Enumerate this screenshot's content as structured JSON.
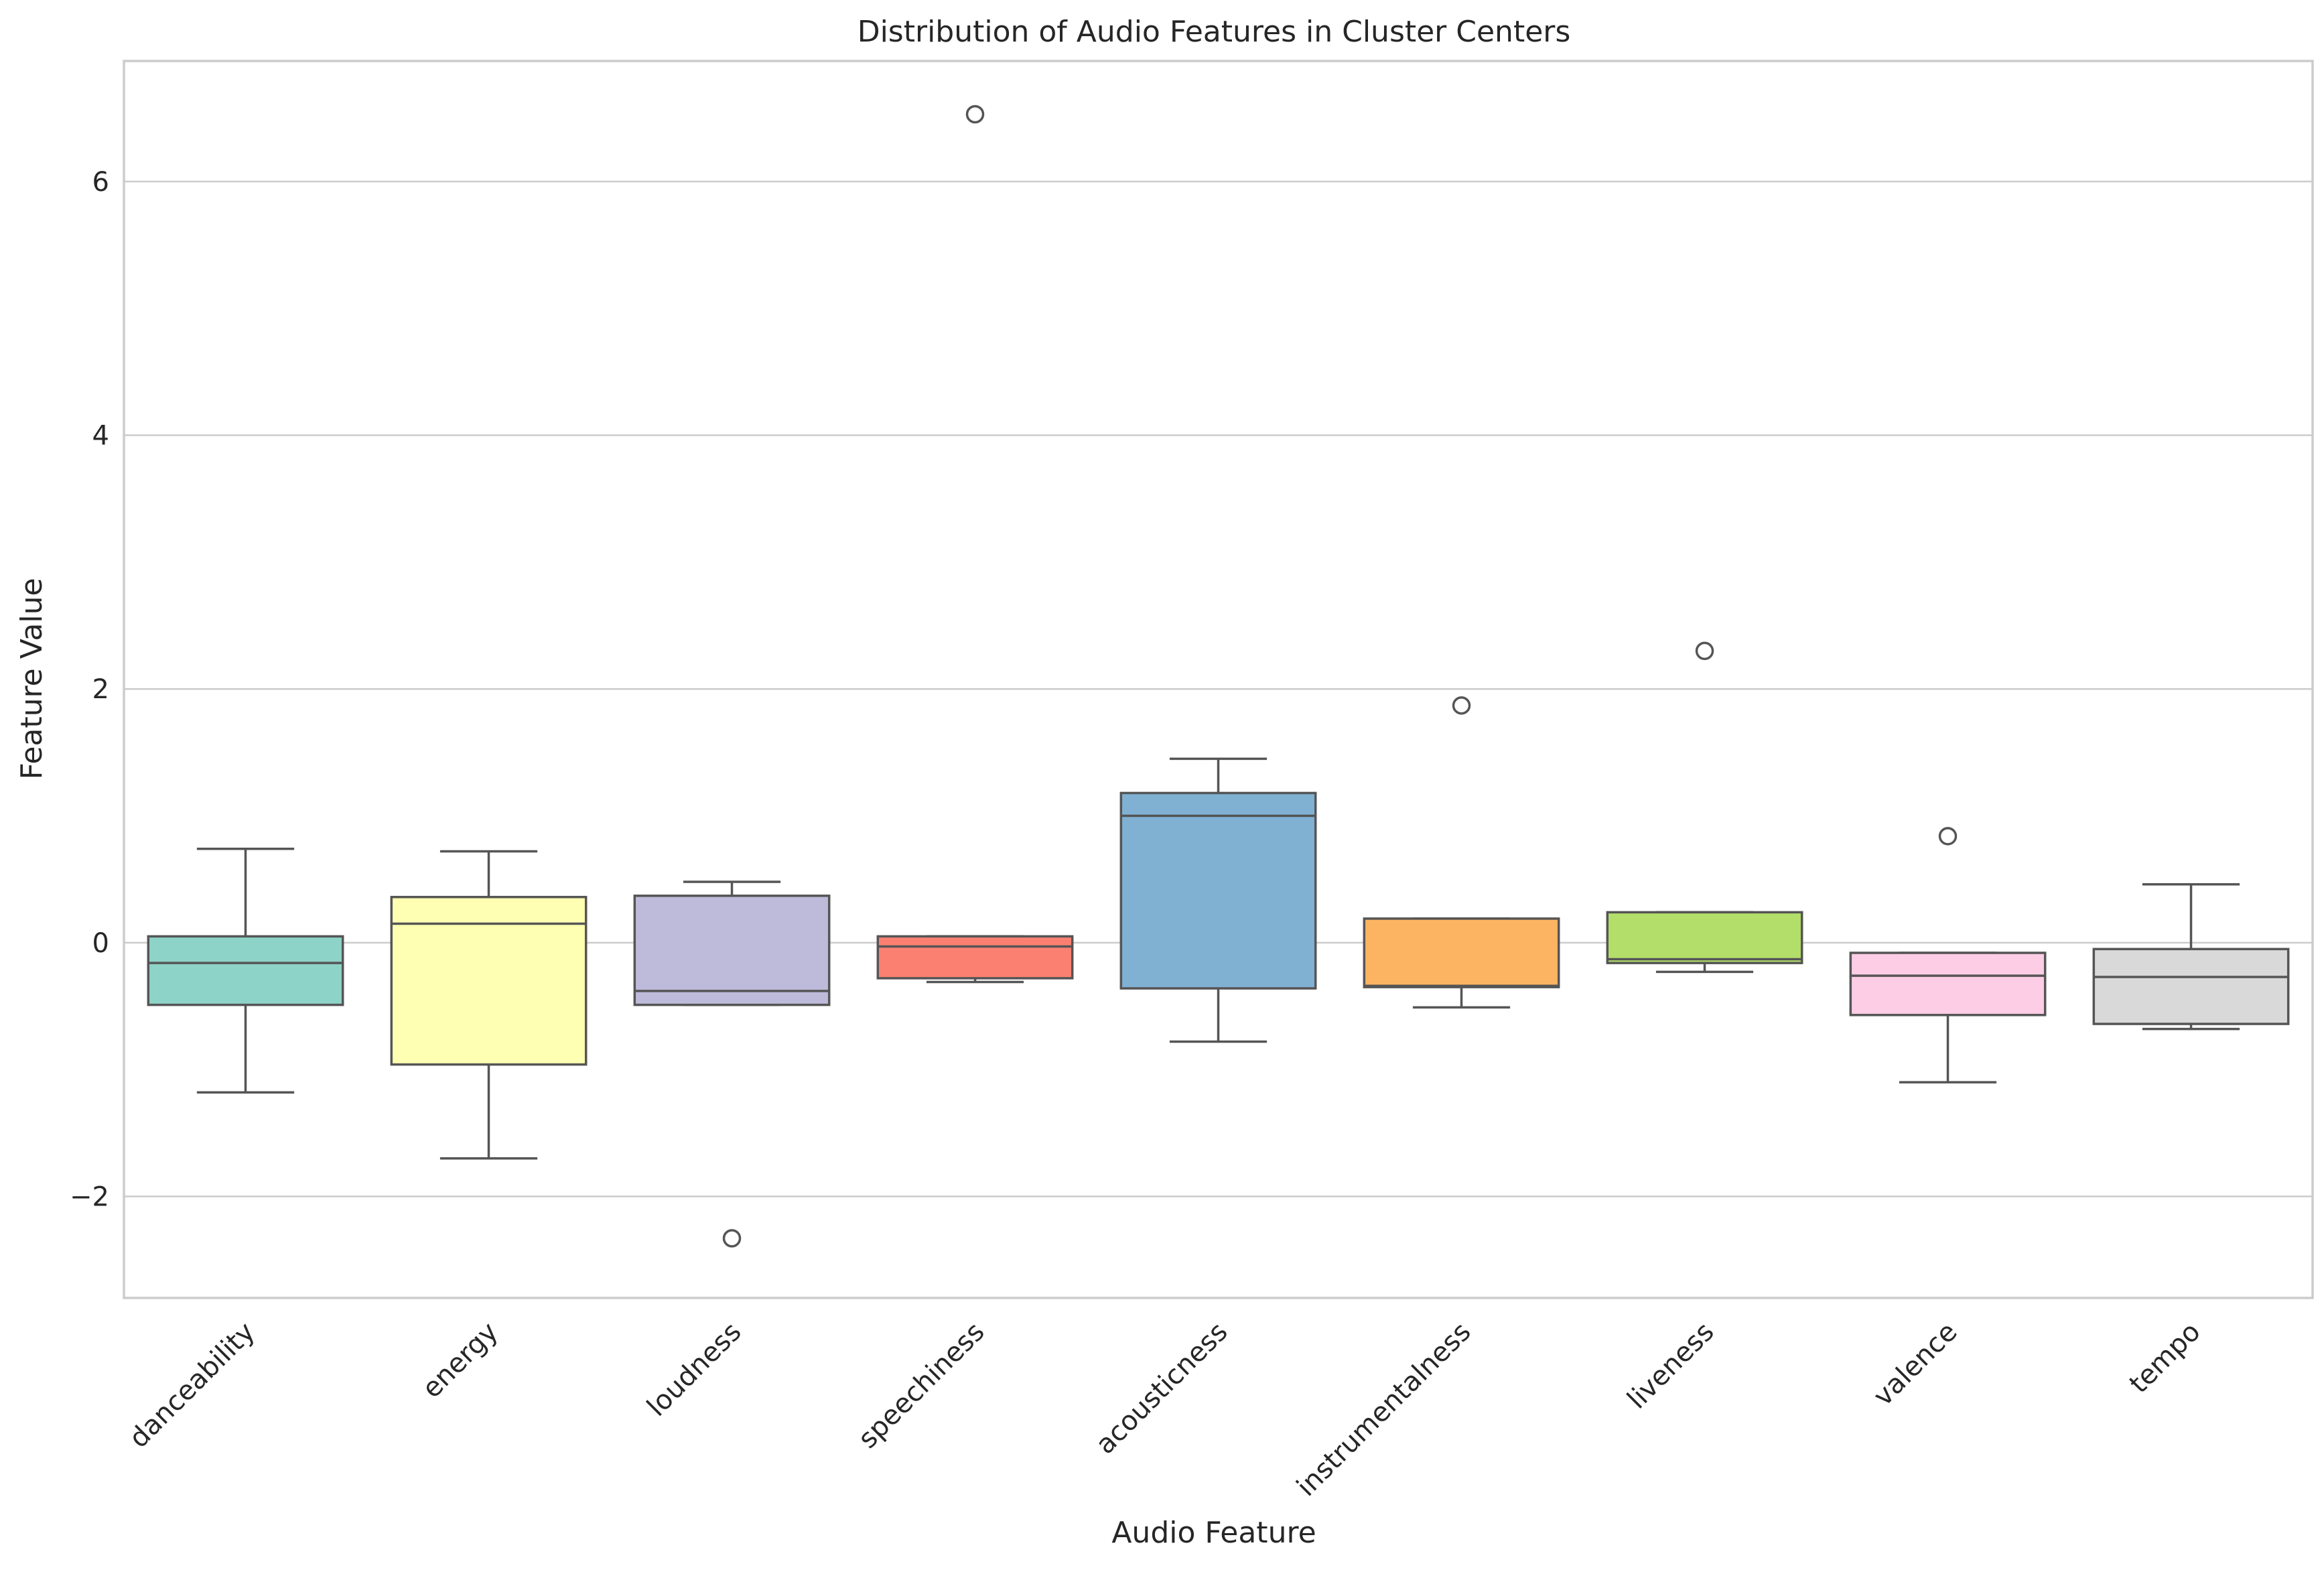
{
  "chart_data": {
    "type": "box",
    "title": "Distribution of Audio Features in Cluster Centers",
    "xlabel": "Audio Feature",
    "ylabel": "Feature Value",
    "ylim": [
      -2.8,
      6.95
    ],
    "yticks": [
      -2,
      0,
      2,
      4,
      6
    ],
    "ytick_labels": [
      "−2",
      "0",
      "2",
      "4",
      "6"
    ],
    "grid": "horizontal",
    "categories": [
      "danceability",
      "energy",
      "loudness",
      "speechiness",
      "acousticness",
      "instrumentalness",
      "liveness",
      "valence",
      "tempo"
    ],
    "boxes": [
      {
        "feature": "danceability",
        "whisker_low": -1.18,
        "q1": -0.49,
        "median": -0.16,
        "q3": 0.05,
        "whisker_high": 0.74,
        "outliers": [],
        "color": "#8dd3c7"
      },
      {
        "feature": "energy",
        "whisker_low": -1.7,
        "q1": -0.96,
        "median": 0.15,
        "q3": 0.36,
        "whisker_high": 0.72,
        "outliers": [],
        "color": "#ffffb3"
      },
      {
        "feature": "loudness",
        "whisker_low": -0.49,
        "q1": -0.49,
        "median": -0.38,
        "q3": 0.37,
        "whisker_high": 0.48,
        "outliers": [
          -2.33
        ],
        "color": "#bebada"
      },
      {
        "feature": "speechiness",
        "whisker_low": -0.31,
        "q1": -0.28,
        "median": -0.03,
        "q3": 0.05,
        "whisker_high": 0.05,
        "outliers": [
          6.53
        ],
        "color": "#fb8072"
      },
      {
        "feature": "acousticness",
        "whisker_low": -0.78,
        "q1": -0.36,
        "median": 1.0,
        "q3": 1.18,
        "whisker_high": 1.45,
        "outliers": [],
        "color": "#80b1d3"
      },
      {
        "feature": "instrumentalness",
        "whisker_low": -0.51,
        "q1": -0.35,
        "median": -0.34,
        "q3": 0.19,
        "whisker_high": 0.19,
        "outliers": [
          1.87
        ],
        "color": "#fdb462"
      },
      {
        "feature": "liveness",
        "whisker_low": -0.23,
        "q1": -0.16,
        "median": -0.13,
        "q3": 0.24,
        "whisker_high": 0.24,
        "outliers": [
          2.3
        ],
        "color": "#b3de69"
      },
      {
        "feature": "valence",
        "whisker_low": -1.1,
        "q1": -0.57,
        "median": -0.26,
        "q3": -0.08,
        "whisker_high": -0.08,
        "outliers": [
          0.84
        ],
        "color": "#fccde5"
      },
      {
        "feature": "tempo",
        "whisker_low": -0.68,
        "q1": -0.64,
        "median": -0.27,
        "q3": -0.05,
        "whisker_high": 0.46,
        "outliers": [],
        "color": "#d9d9d9"
      }
    ]
  }
}
